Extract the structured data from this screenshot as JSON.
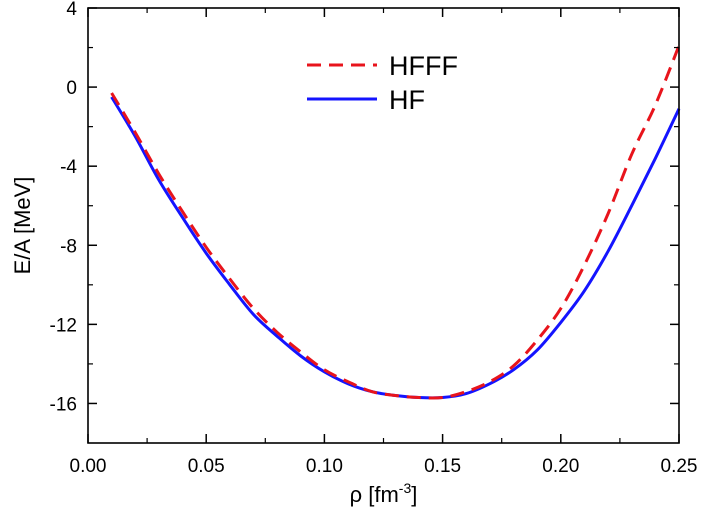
{
  "chart_data": {
    "type": "line",
    "title": "",
    "xlabel": "ρ [fm",
    "xlabel_sup": "-3",
    "xlabel_suffix": "]",
    "ylabel": "E/A [MeV]",
    "xlim": [
      0.0,
      0.25
    ],
    "ylim": [
      -18,
      4
    ],
    "x_ticks": [
      0.0,
      0.05,
      0.1,
      0.15,
      0.2,
      0.25
    ],
    "x_tick_labels": [
      "0.00",
      "0.05",
      "0.10",
      "0.15",
      "0.20",
      "0.25"
    ],
    "y_ticks": [
      4,
      0,
      -4,
      -8,
      -12,
      -16
    ],
    "y_tick_labels": [
      "4",
      "0",
      "-4",
      "-8",
      "-12",
      "-16"
    ],
    "x_minor_step": 0.025,
    "y_minor_step": 2,
    "grid": false,
    "legend_position": "top-center",
    "series": [
      {
        "name": "HFFF",
        "color": "#e8141c",
        "dash": "dashed",
        "x": [
          0.01,
          0.02,
          0.03,
          0.04,
          0.05,
          0.06,
          0.07,
          0.08,
          0.09,
          0.1,
          0.11,
          0.12,
          0.13,
          0.14,
          0.15,
          0.16,
          0.17,
          0.18,
          0.19,
          0.2,
          0.21,
          0.22,
          0.23,
          0.24,
          0.25
        ],
        "y": [
          -0.3,
          -2.3,
          -4.4,
          -6.3,
          -8.1,
          -9.7,
          -11.2,
          -12.4,
          -13.4,
          -14.3,
          -14.9,
          -15.4,
          -15.6,
          -15.7,
          -15.7,
          -15.4,
          -14.9,
          -14.1,
          -12.8,
          -11.2,
          -9.0,
          -6.4,
          -3.4,
          -0.9,
          2.1
        ]
      },
      {
        "name": "HF",
        "color": "#1414ff",
        "dash": "solid",
        "x": [
          0.01,
          0.02,
          0.03,
          0.04,
          0.05,
          0.06,
          0.07,
          0.08,
          0.09,
          0.1,
          0.11,
          0.12,
          0.13,
          0.14,
          0.15,
          0.16,
          0.17,
          0.18,
          0.19,
          0.2,
          0.21,
          0.22,
          0.23,
          0.24,
          0.25
        ],
        "y": [
          -0.5,
          -2.5,
          -4.7,
          -6.6,
          -8.4,
          -10.0,
          -11.5,
          -12.6,
          -13.6,
          -14.4,
          -15.0,
          -15.4,
          -15.6,
          -15.7,
          -15.7,
          -15.5,
          -15.0,
          -14.3,
          -13.3,
          -11.9,
          -10.3,
          -8.3,
          -6.0,
          -3.6,
          -1.1
        ]
      }
    ]
  }
}
